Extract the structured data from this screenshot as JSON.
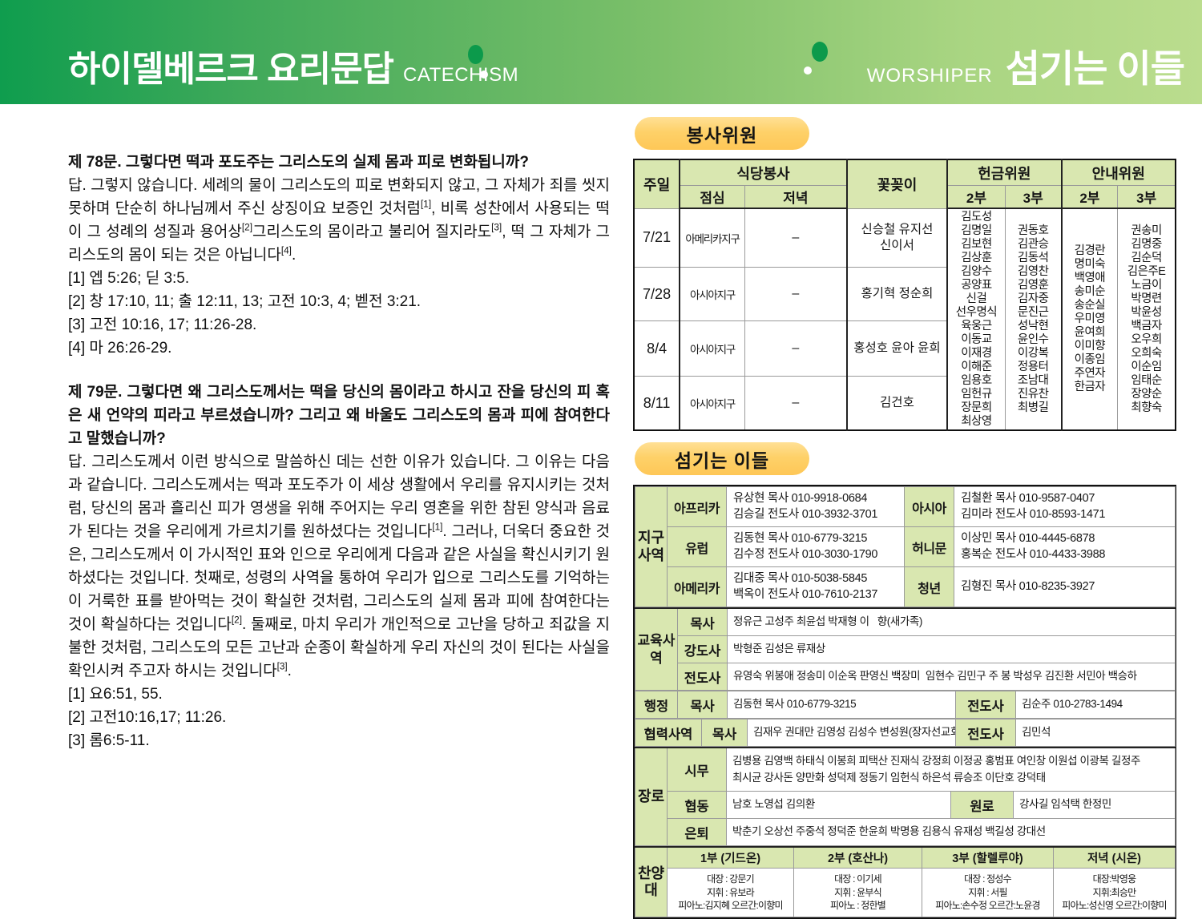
{
  "colors": {
    "banner_green_dark": "#0f9d4e",
    "banner_green_light": "#bbdd8e",
    "pill_yellow": "#fed169",
    "cell_green": "#d9e7b0"
  },
  "header": {
    "title_ko": "하이델베르크 요리문답",
    "title_en": "CATECHISM",
    "right_label_en": "WORSHIPER",
    "right_title_ko": "섬기는 이들"
  },
  "catechism": {
    "q78": {
      "question": "제 78문.  그렇다면 떡과 포도주는 그리스도의 실제 몸과 피로 변화됩니까?",
      "answer": "답. 그렇지 않습니다. 세례의 물이 그리스도의 피로 변화되지 않고, 그 자체가 죄를 씻지 못하며 단순히 하나님께서 주신 상징이요 보증인 것처럼[1], 비록 성찬에서 사용되는 떡이 그 성례의 성질과 용어상[2]그리스도의 몸이라고 불리어 질지라도[3], 떡 그 자체가 그리스도의 몸이 되는 것은 아닙니다[4].",
      "refs": [
        "[1] 엡 5:26; 딛 3:5.",
        "[2] 창 17:10, 11; 출 12:11, 13; 고전 10:3, 4; 벧전 3:21.",
        "[3] 고전 10:16, 17; 11:26-28.",
        "[4] 마 26:26-29."
      ]
    },
    "q79": {
      "question": "제 79문. 그렇다면 왜 그리스도께서는 떡을 당신의 몸이라고 하시고 잔을 당신의 피 혹은 새 언약의 피라고 부르셨습니까? 그리고 왜 바울도 그리스도의 몸과 피에 참여한다고 말했습니까?",
      "answer": "답. 그리스도께서 이런 방식으로 말씀하신 데는 선한 이유가 있습니다. 그 이유는 다음과 같습니다. 그리스도께서는 떡과 포도주가 이 세상 생활에서 우리를 유지시키는 것처럼, 당신의 몸과 흘리신 피가 영생을 위해 주어지는 우리 영혼을 위한 참된 양식과 음료가 된다는 것을 우리에게 가르치기를 원하셨다는 것입니다[1]. 그러나, 더욱더 중요한 것은, 그리스도께서 이 가시적인 표와 인으로 우리에게 다음과 같은 사실을 확신시키기 원하셨다는 것입니다. 첫째로, 성령의 사역을 통하여 우리가 입으로 그리스도를 기억하는 이 거룩한 표를 받아먹는 것이 확실한 것처럼, 그리스도의 실제 몸과 피에 참여한다는 것이 확실하다는 것입니다[2]. 둘째로, 마치 우리가 개인적으로 고난을 당하고 죄값을 지불한 것처럼, 그리스도의 모든 고난과 순종이 확실하게 우리 자신의 것이 된다는 사실을 확인시켜 주고자 하시는 것입니다[3].",
      "refs": [
        "[1] 요6:51, 55.",
        "[2] 고전10:16,17; 11:26.",
        "[3] 롬6:5-11."
      ]
    }
  },
  "volunteers": {
    "section_title": "봉사위원",
    "headers": {
      "week": "주일",
      "dining": "식당봉사",
      "lunch": "점심",
      "dinner": "저녁",
      "flowers": "꽃꽂이",
      "offering": "헌금위원",
      "guide": "안내위원",
      "part2": "2부",
      "part3": "3부"
    },
    "rows": [
      {
        "date": "7/21",
        "lunch": "아메리카지구",
        "dinner": "–",
        "flowers": "신승철 유지선\n신이서"
      },
      {
        "date": "7/28",
        "lunch": "아시아지구",
        "dinner": "–",
        "flowers": "홍기혁 정순희"
      },
      {
        "date": "8/4",
        "lunch": "아시아지구",
        "dinner": "–",
        "flowers": "홍성호 윤아 윤희"
      },
      {
        "date": "8/11",
        "lunch": "아시아지구",
        "dinner": "–",
        "flowers": "김건호"
      }
    ],
    "offering_part2": [
      "김도성",
      "김명일",
      "김보현",
      "김상훈",
      "김양수",
      "공양표",
      "신걸",
      "선우명식",
      "육웅근",
      "이동교",
      "이재경",
      "이해준",
      "임용호",
      "임헌규",
      "장문희",
      "최상영"
    ],
    "offering_part3": [
      "권동호",
      "김관승",
      "김동석",
      "김영찬",
      "김영훈",
      "김자중",
      "문진근",
      "성낙현",
      "윤인수",
      "이강복",
      "정용터",
      "조남대",
      "진유찬",
      "최병길"
    ],
    "guide_part2": [
      "김경란",
      "명미숙",
      "백영애",
      "송미순",
      "송순실",
      "우미영",
      "윤여희",
      "이미향",
      "이종임",
      "주연자",
      "한금자"
    ],
    "guide_part3": [
      "권송미",
      "김명중",
      "김순덕",
      "김은주E",
      "노금이",
      "박명련",
      "박윤성",
      "백금자",
      "오우희",
      "오희숙",
      "이순임",
      "임태순",
      "장양순",
      "최향숙"
    ]
  },
  "servants": {
    "section_title": "섬기는 이들",
    "district": {
      "label": "지구사역",
      "rows": [
        {
          "left_cat": "아프리카",
          "left_info": "유상현 목사 010-9918-0684\n김승길 전도사 010-3932-3701",
          "right_cat": "아시아",
          "right_info": "김철환 목사 010-9587-0407\n김미라 전도사 010-8593-1471"
        },
        {
          "left_cat": "유럽",
          "left_info": "김동현 목사 010-6779-3215\n김수정 전도사 010-3030-1790",
          "right_cat": "허니문",
          "right_info": "이상민 목사 010-4445-6878\n홍복순 전도사 010-4433-3988"
        },
        {
          "left_cat": "아메리카",
          "left_info": "김대중 목사 010-5038-5845\n백옥이 전도사 010-7610-2137",
          "right_cat": "청년",
          "right_info": "김형진 목사 010-8235-3927"
        }
      ]
    },
    "education": {
      "label": "교육사역",
      "rows": [
        {
          "role": "목사",
          "names": "정유근 고성주 최윤섭 박재형 이   향(새가족)"
        },
        {
          "role": "강도사",
          "names": "박형준 김성은 류재상"
        },
        {
          "role": "전도사",
          "names": "유영숙 위봉애 정송미 이순옥 판영신 백장미  임현수 김민구 주 봉 박성우 김진환 서민아 백승하"
        }
      ]
    },
    "admin": {
      "label": "행정",
      "role": "목사",
      "value": "김동현 목사 010-6779-3215",
      "role2": "전도사",
      "value2": "김순주 010-2783-1494"
    },
    "coop": {
      "label": "협력사역",
      "role": "목사",
      "value": "김재우 권대만 김영성 김성수 변성원(장자선교회)",
      "role2": "전도사",
      "value2": "김민석"
    },
    "elders": {
      "label": "장로",
      "rows": [
        {
          "role": "시무",
          "names": "김병용 김영백 하태식 이봉희 피택산 진재식 강정희 이정공 홍범표 여인창 이원섭 이광복 길정주\n최시균 강사돈 양만화 성덕제 정동기 임헌식 하은석 류승조 이단호 강덕태"
        },
        {
          "role": "협동",
          "names": "남호 노영섭 김의환"
        },
        {
          "role": "은퇴",
          "names": "박춘기 오상선 주중석 정덕준 한윤희 박명용 김용식 유재성 백길성 강대선"
        }
      ],
      "wonro_label": "원로",
      "wonro_value": "강사길 임석택 한정민"
    },
    "choir": {
      "label": "찬양대",
      "columns": [
        {
          "title": "1부 (기드온)",
          "lines": [
            "대장 : 강문기",
            "지휘 : 유보라",
            "피아노:김지혜 오르간:이향미"
          ]
        },
        {
          "title": "2부 (호산나)",
          "lines": [
            "대장 : 이기세",
            "지휘 : 윤부식",
            "피아노 : 정한별"
          ]
        },
        {
          "title": "3부 (할렐루야)",
          "lines": [
            "대장 : 정성수",
            "지휘 : 서필",
            "피아노:손수정 오르간:노윤경"
          ]
        },
        {
          "title": "저녁 (시온)",
          "lines": [
            "대장:박영웅",
            "지휘:최승만",
            "피아노:성신영 오르간:이향미"
          ]
        }
      ]
    }
  }
}
